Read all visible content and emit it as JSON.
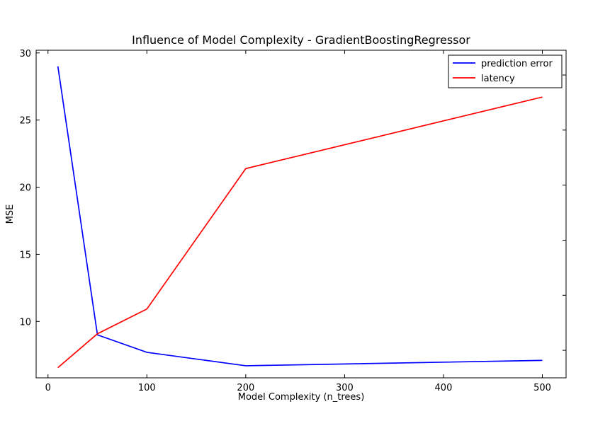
{
  "chart_data": {
    "type": "line",
    "title": "Influence of Model Complexity - GradientBoostingRegressor",
    "xlabel": "Model Complexity (n_trees)",
    "ylabel": "MSE",
    "xlim": [
      -12,
      524
    ],
    "ylim": [
      5.8,
      30.2
    ],
    "x_ticks": [
      0,
      100,
      200,
      300,
      400,
      500
    ],
    "y_ticks": [
      10,
      15,
      20,
      25,
      30
    ],
    "x": [
      10,
      50,
      100,
      200,
      500
    ],
    "series": [
      {
        "name": "prediction error",
        "color": "#0000ff",
        "axis": "left",
        "values": [
          29.0,
          9.0,
          7.7,
          6.7,
          7.1
        ]
      },
      {
        "name": "latency",
        "color": "#ff0000",
        "axis": "right",
        "values": [
          0.37,
          1.6,
          2.5,
          7.6,
          10.2
        ]
      }
    ],
    "y2lim": [
      0.0,
      11.9
    ],
    "y2_ticks": [
      1,
      3,
      5,
      7,
      9,
      11
    ],
    "y2_tick_labels_visible": false,
    "legend": "top-right",
    "ylabel_color": "#0000ff",
    "grid": false
  }
}
